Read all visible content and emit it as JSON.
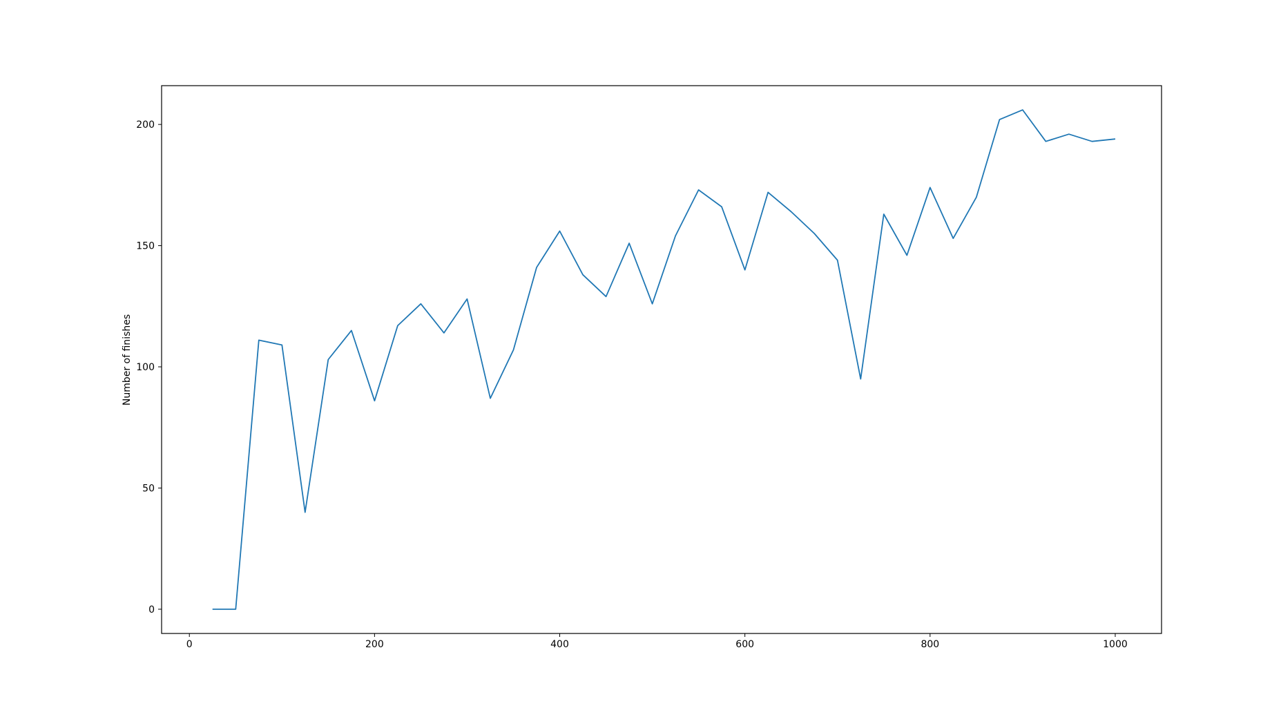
{
  "chart_data": {
    "type": "line",
    "title": "",
    "xlabel": "",
    "ylabel": "Number of finishes",
    "xlim": [
      -30,
      1050
    ],
    "ylim": [
      -10,
      216
    ],
    "xticks": [
      0,
      200,
      400,
      600,
      800,
      1000
    ],
    "yticks": [
      0,
      50,
      100,
      150,
      200
    ],
    "grid": false,
    "series": [
      {
        "color": "#1f77b4",
        "x": [
          25,
          50,
          75,
          100,
          125,
          150,
          175,
          200,
          225,
          250,
          275,
          300,
          325,
          350,
          375,
          400,
          425,
          450,
          475,
          500,
          525,
          550,
          575,
          600,
          625,
          650,
          675,
          700,
          725,
          750,
          775,
          800,
          825,
          850,
          875,
          900,
          925,
          950,
          975,
          1000
        ],
        "y": [
          0,
          0,
          111,
          109,
          40,
          103,
          115,
          86,
          117,
          126,
          114,
          128,
          87,
          107,
          141,
          156,
          138,
          129,
          151,
          126,
          154,
          173,
          166,
          140,
          172,
          164,
          155,
          144,
          95,
          163,
          146,
          174,
          153,
          170,
          202,
          206,
          193,
          196,
          193,
          194
        ]
      }
    ]
  }
}
